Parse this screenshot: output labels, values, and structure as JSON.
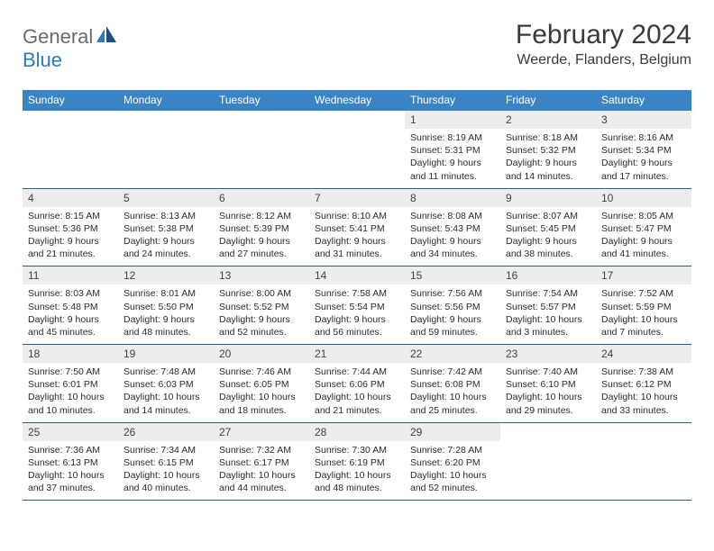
{
  "logo": {
    "text1": "General",
    "text2": "Blue"
  },
  "title": "February 2024",
  "location": "Weerde, Flanders, Belgium",
  "colors": {
    "header_bg": "#3b84c4",
    "header_text": "#ffffff",
    "daynum_bg": "#eceded",
    "rule": "#2e5e8c",
    "logo_gray": "#6b6b6b",
    "logo_blue": "#2f78c0"
  },
  "day_names": [
    "Sunday",
    "Monday",
    "Tuesday",
    "Wednesday",
    "Thursday",
    "Friday",
    "Saturday"
  ],
  "weeks": [
    [
      null,
      null,
      null,
      null,
      {
        "n": "1",
        "sr": "Sunrise: 8:19 AM",
        "ss": "Sunset: 5:31 PM",
        "d1": "Daylight: 9 hours",
        "d2": "and 11 minutes."
      },
      {
        "n": "2",
        "sr": "Sunrise: 8:18 AM",
        "ss": "Sunset: 5:32 PM",
        "d1": "Daylight: 9 hours",
        "d2": "and 14 minutes."
      },
      {
        "n": "3",
        "sr": "Sunrise: 8:16 AM",
        "ss": "Sunset: 5:34 PM",
        "d1": "Daylight: 9 hours",
        "d2": "and 17 minutes."
      }
    ],
    [
      {
        "n": "4",
        "sr": "Sunrise: 8:15 AM",
        "ss": "Sunset: 5:36 PM",
        "d1": "Daylight: 9 hours",
        "d2": "and 21 minutes."
      },
      {
        "n": "5",
        "sr": "Sunrise: 8:13 AM",
        "ss": "Sunset: 5:38 PM",
        "d1": "Daylight: 9 hours",
        "d2": "and 24 minutes."
      },
      {
        "n": "6",
        "sr": "Sunrise: 8:12 AM",
        "ss": "Sunset: 5:39 PM",
        "d1": "Daylight: 9 hours",
        "d2": "and 27 minutes."
      },
      {
        "n": "7",
        "sr": "Sunrise: 8:10 AM",
        "ss": "Sunset: 5:41 PM",
        "d1": "Daylight: 9 hours",
        "d2": "and 31 minutes."
      },
      {
        "n": "8",
        "sr": "Sunrise: 8:08 AM",
        "ss": "Sunset: 5:43 PM",
        "d1": "Daylight: 9 hours",
        "d2": "and 34 minutes."
      },
      {
        "n": "9",
        "sr": "Sunrise: 8:07 AM",
        "ss": "Sunset: 5:45 PM",
        "d1": "Daylight: 9 hours",
        "d2": "and 38 minutes."
      },
      {
        "n": "10",
        "sr": "Sunrise: 8:05 AM",
        "ss": "Sunset: 5:47 PM",
        "d1": "Daylight: 9 hours",
        "d2": "and 41 minutes."
      }
    ],
    [
      {
        "n": "11",
        "sr": "Sunrise: 8:03 AM",
        "ss": "Sunset: 5:48 PM",
        "d1": "Daylight: 9 hours",
        "d2": "and 45 minutes."
      },
      {
        "n": "12",
        "sr": "Sunrise: 8:01 AM",
        "ss": "Sunset: 5:50 PM",
        "d1": "Daylight: 9 hours",
        "d2": "and 48 minutes."
      },
      {
        "n": "13",
        "sr": "Sunrise: 8:00 AM",
        "ss": "Sunset: 5:52 PM",
        "d1": "Daylight: 9 hours",
        "d2": "and 52 minutes."
      },
      {
        "n": "14",
        "sr": "Sunrise: 7:58 AM",
        "ss": "Sunset: 5:54 PM",
        "d1": "Daylight: 9 hours",
        "d2": "and 56 minutes."
      },
      {
        "n": "15",
        "sr": "Sunrise: 7:56 AM",
        "ss": "Sunset: 5:56 PM",
        "d1": "Daylight: 9 hours",
        "d2": "and 59 minutes."
      },
      {
        "n": "16",
        "sr": "Sunrise: 7:54 AM",
        "ss": "Sunset: 5:57 PM",
        "d1": "Daylight: 10 hours",
        "d2": "and 3 minutes."
      },
      {
        "n": "17",
        "sr": "Sunrise: 7:52 AM",
        "ss": "Sunset: 5:59 PM",
        "d1": "Daylight: 10 hours",
        "d2": "and 7 minutes."
      }
    ],
    [
      {
        "n": "18",
        "sr": "Sunrise: 7:50 AM",
        "ss": "Sunset: 6:01 PM",
        "d1": "Daylight: 10 hours",
        "d2": "and 10 minutes."
      },
      {
        "n": "19",
        "sr": "Sunrise: 7:48 AM",
        "ss": "Sunset: 6:03 PM",
        "d1": "Daylight: 10 hours",
        "d2": "and 14 minutes."
      },
      {
        "n": "20",
        "sr": "Sunrise: 7:46 AM",
        "ss": "Sunset: 6:05 PM",
        "d1": "Daylight: 10 hours",
        "d2": "and 18 minutes."
      },
      {
        "n": "21",
        "sr": "Sunrise: 7:44 AM",
        "ss": "Sunset: 6:06 PM",
        "d1": "Daylight: 10 hours",
        "d2": "and 21 minutes."
      },
      {
        "n": "22",
        "sr": "Sunrise: 7:42 AM",
        "ss": "Sunset: 6:08 PM",
        "d1": "Daylight: 10 hours",
        "d2": "and 25 minutes."
      },
      {
        "n": "23",
        "sr": "Sunrise: 7:40 AM",
        "ss": "Sunset: 6:10 PM",
        "d1": "Daylight: 10 hours",
        "d2": "and 29 minutes."
      },
      {
        "n": "24",
        "sr": "Sunrise: 7:38 AM",
        "ss": "Sunset: 6:12 PM",
        "d1": "Daylight: 10 hours",
        "d2": "and 33 minutes."
      }
    ],
    [
      {
        "n": "25",
        "sr": "Sunrise: 7:36 AM",
        "ss": "Sunset: 6:13 PM",
        "d1": "Daylight: 10 hours",
        "d2": "and 37 minutes."
      },
      {
        "n": "26",
        "sr": "Sunrise: 7:34 AM",
        "ss": "Sunset: 6:15 PM",
        "d1": "Daylight: 10 hours",
        "d2": "and 40 minutes."
      },
      {
        "n": "27",
        "sr": "Sunrise: 7:32 AM",
        "ss": "Sunset: 6:17 PM",
        "d1": "Daylight: 10 hours",
        "d2": "and 44 minutes."
      },
      {
        "n": "28",
        "sr": "Sunrise: 7:30 AM",
        "ss": "Sunset: 6:19 PM",
        "d1": "Daylight: 10 hours",
        "d2": "and 48 minutes."
      },
      {
        "n": "29",
        "sr": "Sunrise: 7:28 AM",
        "ss": "Sunset: 6:20 PM",
        "d1": "Daylight: 10 hours",
        "d2": "and 52 minutes."
      },
      null,
      null
    ]
  ]
}
